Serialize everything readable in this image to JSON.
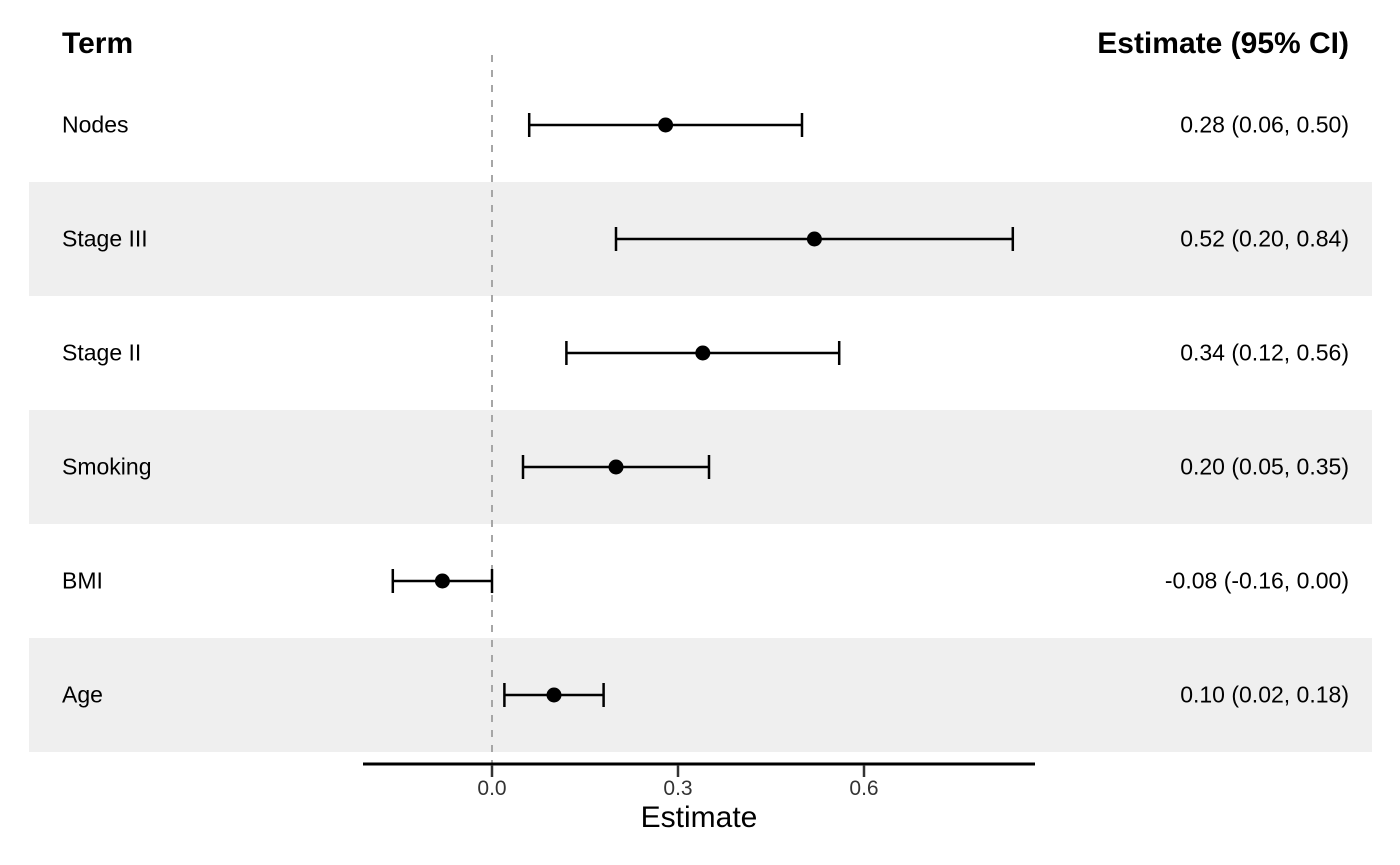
{
  "header": {
    "term": "Term",
    "estimate": "Estimate (95% CI)"
  },
  "axis": {
    "title": "Estimate",
    "tick_labels": [
      "0.0",
      "0.3",
      "0.6"
    ],
    "tick_values": [
      0.0,
      0.3,
      0.6
    ]
  },
  "rows": [
    {
      "term": "Nodes",
      "estimate": 0.28,
      "ci_low": 0.06,
      "ci_high": 0.5,
      "label": "0.28 (0.06, 0.50)",
      "striped": false
    },
    {
      "term": "Stage III",
      "estimate": 0.52,
      "ci_low": 0.2,
      "ci_high": 0.84,
      "label": "0.52 (0.20, 0.84)",
      "striped": true
    },
    {
      "term": "Stage II",
      "estimate": 0.34,
      "ci_low": 0.12,
      "ci_high": 0.56,
      "label": "0.34 (0.12, 0.56)",
      "striped": false
    },
    {
      "term": "Smoking",
      "estimate": 0.2,
      "ci_low": 0.05,
      "ci_high": 0.35,
      "label": "0.20 (0.05, 0.35)",
      "striped": true
    },
    {
      "term": "BMI",
      "estimate": -0.08,
      "ci_low": -0.16,
      "ci_high": 0.0,
      "label": "-0.08 (-0.16, 0.00)",
      "striped": false
    },
    {
      "term": "Age",
      "estimate": 0.1,
      "ci_low": 0.02,
      "ci_high": 0.18,
      "label": "0.10 (0.02, 0.18)",
      "striped": true
    }
  ],
  "colors": {
    "stripe": "#EFEFEF",
    "zero_line": "#A6A6A6",
    "marker": "#000000",
    "error_bar": "#000000",
    "axis_line": "#000000",
    "tick": "#333333",
    "tick_label": "#333333",
    "text": "#000000"
  },
  "chart_data": {
    "type": "scatter",
    "subtype": "forest-plot",
    "orientation": "horizontal",
    "title": "",
    "xlabel": "Estimate",
    "ylabel": "",
    "categories": [
      "Nodes",
      "Stage III",
      "Stage II",
      "Smoking",
      "BMI",
      "Age"
    ],
    "series": [
      {
        "name": "Estimate",
        "values": [
          0.28,
          0.52,
          0.34,
          0.2,
          -0.08,
          0.1
        ]
      },
      {
        "name": "CI lower",
        "values": [
          0.06,
          0.2,
          0.12,
          0.05,
          -0.16,
          0.02
        ]
      },
      {
        "name": "CI upper",
        "values": [
          0.5,
          0.84,
          0.56,
          0.35,
          0.0,
          0.18
        ]
      }
    ],
    "value_labels": [
      "0.28 (0.06, 0.50)",
      "0.52 (0.20, 0.84)",
      "0.34 (0.12, 0.56)",
      "0.20 (0.05, 0.35)",
      "-0.08 (-0.16, 0.00)",
      "0.10 (0.02, 0.18)"
    ],
    "xlim": [
      -0.21,
      0.88
    ],
    "xticks": [
      0.0,
      0.3,
      0.6
    ],
    "xtick_labels": [
      "0.0",
      "0.3",
      "0.6"
    ],
    "reference_line": 0.0,
    "reference_line_style": "dashed",
    "grid": false,
    "legend": false,
    "striped_rows": [
      "Stage III",
      "Smoking",
      "Age"
    ]
  }
}
